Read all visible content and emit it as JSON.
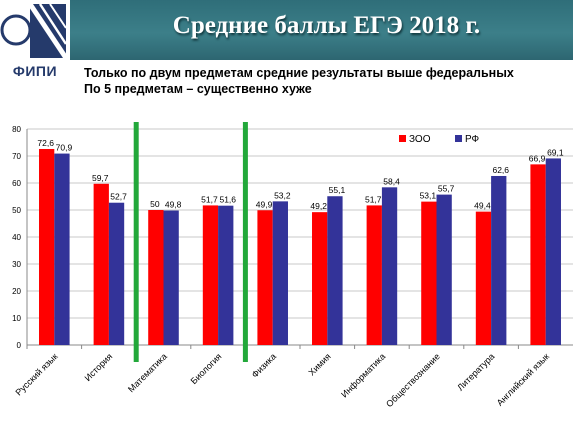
{
  "slide": {
    "title": "Средние баллы ЕГЭ 2018 г.",
    "logo_text": "ФИПИ",
    "subtitle_lines": [
      "Только по двум предметам средние результаты выше федеральных",
      "По 5 предметам – существенно хуже"
    ]
  },
  "colors": {
    "header_bg": "#2f6e79",
    "series_zoo": "#ff0000",
    "series_rf": "#333399",
    "highlight_line": "#22a83a"
  },
  "chart_data": {
    "type": "bar",
    "categories": [
      "Русский язык",
      "История",
      "Математика",
      "Биология",
      "Физика",
      "Химия",
      "Информатика",
      "Обществознание",
      "Литература",
      "Английский язык"
    ],
    "series": [
      {
        "name": "ЗОО",
        "values": [
          72.6,
          59.7,
          50,
          51.7,
          49.9,
          49.2,
          51.7,
          53.1,
          49.4,
          66.9
        ],
        "labels": [
          "72,6",
          "59,7",
          "50",
          "51,7",
          "49,9",
          "49,2",
          "51,7",
          "53,1",
          "49,4",
          "66,9"
        ]
      },
      {
        "name": "РФ",
        "values": [
          70.9,
          52.7,
          49.8,
          51.6,
          53.2,
          55.1,
          58.4,
          55.7,
          62.6,
          69.1
        ],
        "labels": [
          "70,9",
          "52,7",
          "49,8",
          "51,6",
          "53,2",
          "55,1",
          "58,4",
          "55,7",
          "62,6",
          "69,1"
        ]
      }
    ],
    "ylim": [
      0,
      80
    ],
    "yticks": [
      "0",
      "10",
      "20",
      "30",
      "40",
      "50",
      "60",
      "70",
      "80"
    ],
    "grid": true,
    "legend_position": "top-right",
    "highlight_after_categories": [
      "История",
      "Биология"
    ]
  }
}
